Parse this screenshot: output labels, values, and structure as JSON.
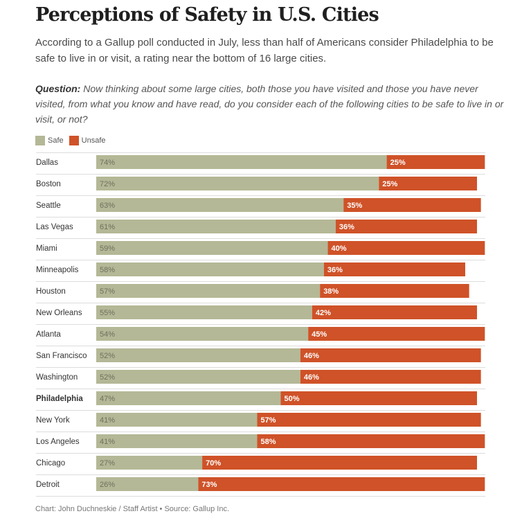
{
  "title": "Perceptions of Safety in U.S. Cities",
  "subtitle": "According to a Gallup poll conducted in July, less than half of Americans consider Philadelphia to be safe to live in or visit, a rating near the bottom of 16 large cities.",
  "question": {
    "label": "Question:",
    "text": "Now thinking about some large cities, both those you have visited and those you have never visited, from what you know and have read, do you consider each of the following cities to be safe to live in or visit, or not?"
  },
  "colors": {
    "safe": "#b4b896",
    "unsafe": "#cf5228"
  },
  "footer": "Chart: John Duchneskie / Staff Artist • Source: Gallup Inc.",
  "chart_data": {
    "type": "bar",
    "orientation": "horizontal",
    "stacked": true,
    "categories": [
      "Dallas",
      "Boston",
      "Seattle",
      "Las Vegas",
      "Miami",
      "Minneapolis",
      "Houston",
      "New Orleans",
      "Atlanta",
      "San Francisco",
      "Washington",
      "Philadelphia",
      "New York",
      "Los Angeles",
      "Chicago",
      "Detroit"
    ],
    "highlight": "Philadelphia",
    "value_suffix": "%",
    "series": [
      {
        "name": "Safe",
        "color": "#b4b896",
        "values": [
          74,
          72,
          63,
          61,
          59,
          58,
          57,
          55,
          54,
          52,
          52,
          47,
          41,
          41,
          27,
          26
        ]
      },
      {
        "name": "Unsafe",
        "color": "#cf5228",
        "values": [
          25,
          25,
          35,
          36,
          40,
          36,
          38,
          42,
          45,
          46,
          46,
          50,
          57,
          58,
          70,
          73
        ]
      }
    ],
    "xlim": [
      0,
      100
    ],
    "legend_position": "top-left",
    "grid": false
  }
}
